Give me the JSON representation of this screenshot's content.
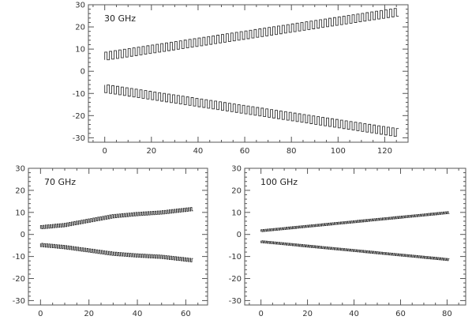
{
  "chart_data": [
    {
      "type": "line",
      "label": "30 GHz",
      "xlim": [
        -7,
        130
      ],
      "ylim": [
        -32,
        30
      ],
      "xticks": [
        0,
        20,
        40,
        60,
        80,
        100,
        120
      ],
      "yticks": [
        -30,
        -20,
        -10,
        0,
        10,
        20,
        30
      ],
      "x_range": [
        0,
        126
      ],
      "n_steps": 63,
      "series": [
        {
          "x": [
            0,
            126
          ],
          "y": [
            5,
            25
          ],
          "sawtooth_amplitude": 3.5
        },
        {
          "x": [
            0,
            126
          ],
          "y": [
            -6,
            -26
          ],
          "sawtooth_amplitude": 3.5
        }
      ]
    },
    {
      "type": "line",
      "label": "70 GHz",
      "xlim": [
        -5,
        69
      ],
      "ylim": [
        -32,
        30
      ],
      "xticks": [
        0,
        20,
        40,
        60
      ],
      "yticks": [
        -30,
        -20,
        -10,
        0,
        10,
        20,
        30
      ],
      "x_range": [
        0,
        63
      ],
      "n_steps": 64,
      "series": [
        {
          "x": [
            0,
            10,
            20,
            30,
            40,
            50,
            63
          ],
          "y": [
            2.5,
            3.5,
            5.5,
            7.5,
            8.5,
            9.2,
            10.8
          ],
          "sawtooth_amplitude": 1.5
        },
        {
          "x": [
            0,
            10,
            20,
            30,
            40,
            50,
            63
          ],
          "y": [
            -4,
            -5,
            -6.5,
            -8,
            -8.8,
            -9.4,
            -11
          ],
          "sawtooth_amplitude": 1.5
        }
      ]
    },
    {
      "type": "line",
      "label": "100 GHz",
      "xlim": [
        -7,
        88
      ],
      "ylim": [
        -32,
        30
      ],
      "xticks": [
        0,
        20,
        40,
        60,
        80
      ],
      "yticks": [
        -30,
        -20,
        -10,
        0,
        10,
        20,
        30
      ],
      "x_range": [
        0,
        81
      ],
      "n_steps": 90,
      "series": [
        {
          "x": [
            0,
            81
          ],
          "y": [
            1.2,
            9.5
          ],
          "sawtooth_amplitude": 0.9
        },
        {
          "x": [
            0,
            81
          ],
          "y": [
            -2.8,
            -11
          ],
          "sawtooth_amplitude": 0.9
        }
      ]
    }
  ]
}
